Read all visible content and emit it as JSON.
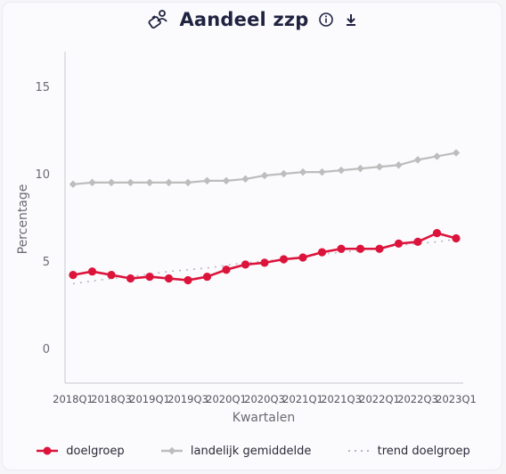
{
  "header": {
    "title": "Aandeel zzp",
    "title_icon": "person-briefcase-icon",
    "info_icon": "info-icon",
    "download_icon": "download-icon"
  },
  "chart_data": {
    "type": "line",
    "xlabel": "Kwartalen",
    "ylabel": "Percentage",
    "ylim": [
      -2,
      17
    ],
    "yticks": [
      0,
      5,
      10,
      15
    ],
    "categories": [
      "2018Q1",
      "2018Q2",
      "2018Q3",
      "2018Q4",
      "2019Q1",
      "2019Q2",
      "2019Q3",
      "2019Q4",
      "2020Q1",
      "2020Q2",
      "2020Q3",
      "2020Q4",
      "2021Q1",
      "2021Q2",
      "2021Q3",
      "2021Q4",
      "2022Q1",
      "2022Q2",
      "2022Q3",
      "2022Q4",
      "2023Q1"
    ],
    "tick_labels": [
      "2018Q1",
      "2018Q3",
      "2019Q1",
      "2019Q3",
      "2020Q1",
      "2020Q3",
      "2021Q1",
      "2021Q3",
      "2022Q1",
      "2022Q3",
      "2023Q1"
    ],
    "grid": false,
    "legend_position": "bottom",
    "series": [
      {
        "name": "doelgroep",
        "color": "#dc143c",
        "style": "solid-marker",
        "values": [
          4.2,
          4.4,
          4.2,
          4.0,
          4.1,
          4.0,
          3.9,
          4.1,
          4.5,
          4.8,
          4.9,
          5.1,
          5.2,
          5.5,
          5.7,
          5.7,
          5.7,
          6.0,
          6.1,
          6.6,
          6.3
        ]
      },
      {
        "name": "landelijk gemiddelde",
        "color": "#bdbdbd",
        "style": "solid-diamond",
        "values": [
          9.4,
          9.5,
          9.5,
          9.5,
          9.5,
          9.5,
          9.5,
          9.6,
          9.6,
          9.7,
          9.9,
          10.0,
          10.1,
          10.1,
          10.2,
          10.3,
          10.4,
          10.5,
          10.8,
          11.0,
          11.2
        ]
      },
      {
        "name": "trend doelgroep",
        "color": "#b9b5c0",
        "style": "dotted",
        "values": [
          3.7,
          3.85,
          4.0,
          4.1,
          4.25,
          4.4,
          4.5,
          4.6,
          4.75,
          4.9,
          5.0,
          5.1,
          5.25,
          5.4,
          5.5,
          5.6,
          5.75,
          5.9,
          6.0,
          6.1,
          6.25
        ]
      }
    ]
  }
}
